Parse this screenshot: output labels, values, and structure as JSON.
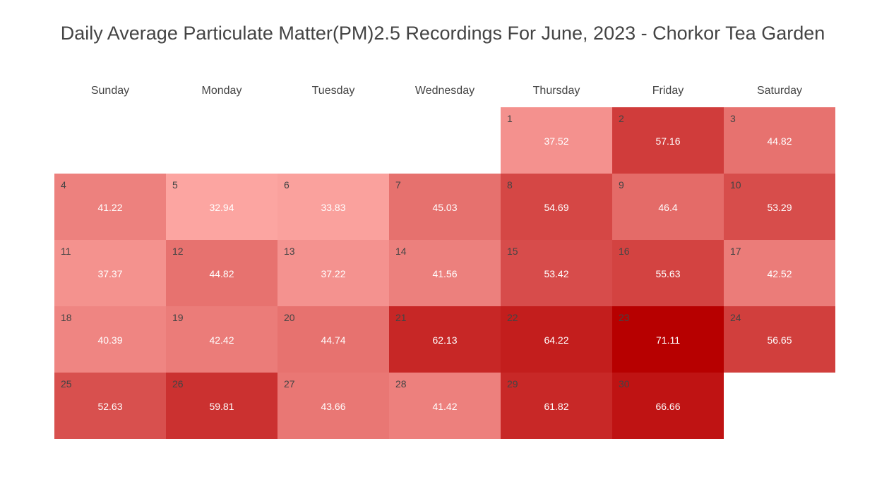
{
  "chart_data": {
    "type": "heatmap",
    "title": "Daily Average Particulate Matter(PM)2.5 Recordings For June, 2023 - Chorkor Tea Garden",
    "month": "June, 2023",
    "weekdays": [
      "Sunday",
      "Monday",
      "Tuesday",
      "Wednesday",
      "Thursday",
      "Friday",
      "Saturday"
    ],
    "first_weekday_index": 4,
    "color_scale": {
      "low": "#fca5a1",
      "high": "#b70000",
      "min": 32.94,
      "max": 71.11
    },
    "days": [
      {
        "day": 1,
        "value": 37.52
      },
      {
        "day": 2,
        "value": 57.16
      },
      {
        "day": 3,
        "value": 44.82
      },
      {
        "day": 4,
        "value": 41.22
      },
      {
        "day": 5,
        "value": 32.94
      },
      {
        "day": 6,
        "value": 33.83
      },
      {
        "day": 7,
        "value": 45.03
      },
      {
        "day": 8,
        "value": 54.69
      },
      {
        "day": 9,
        "value": 46.4
      },
      {
        "day": 10,
        "value": 53.29
      },
      {
        "day": 11,
        "value": 37.37
      },
      {
        "day": 12,
        "value": 44.82
      },
      {
        "day": 13,
        "value": 37.22
      },
      {
        "day": 14,
        "value": 41.56
      },
      {
        "day": 15,
        "value": 53.42
      },
      {
        "day": 16,
        "value": 55.63
      },
      {
        "day": 17,
        "value": 42.52
      },
      {
        "day": 18,
        "value": 40.39
      },
      {
        "day": 19,
        "value": 42.42
      },
      {
        "day": 20,
        "value": 44.74
      },
      {
        "day": 21,
        "value": 62.13
      },
      {
        "day": 22,
        "value": 64.22
      },
      {
        "day": 23,
        "value": 71.11
      },
      {
        "day": 24,
        "value": 56.65
      },
      {
        "day": 25,
        "value": 52.63
      },
      {
        "day": 26,
        "value": 59.81
      },
      {
        "day": 27,
        "value": 43.66
      },
      {
        "day": 28,
        "value": 41.42
      },
      {
        "day": 29,
        "value": 61.82
      },
      {
        "day": 30,
        "value": 66.66
      }
    ]
  }
}
